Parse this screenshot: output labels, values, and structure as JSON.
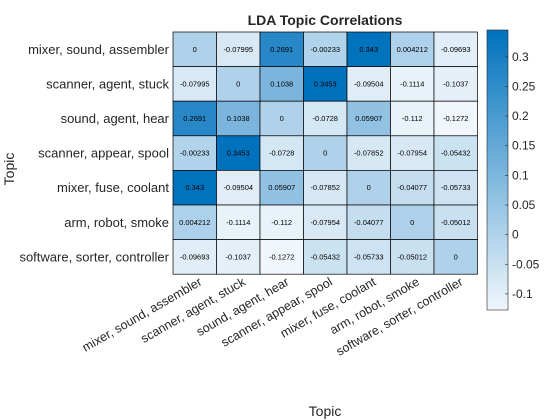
{
  "chart_data": {
    "type": "heatmap",
    "title": "LDA Topic Correlations",
    "xlabel": "Topic",
    "ylabel": "Topic",
    "categories": [
      "mixer, sound, assembler",
      "scanner, agent, stuck",
      "sound, agent, hear",
      "scanner, appear, spool",
      "mixer, fuse, coolant",
      "arm, robot, smoke",
      "software, sorter, controller"
    ],
    "values": [
      [
        0,
        -0.07995,
        0.2691,
        -0.00233,
        0.343,
        0.004212,
        -0.09693
      ],
      [
        -0.07995,
        0,
        0.1038,
        0.3453,
        -0.09504,
        -0.1114,
        -0.1037
      ],
      [
        0.2691,
        0.1038,
        0,
        -0.0728,
        0.05907,
        -0.112,
        -0.1272
      ],
      [
        -0.00233,
        0.3453,
        -0.0728,
        0,
        -0.07852,
        -0.07954,
        -0.05432
      ],
      [
        0.343,
        -0.09504,
        0.05907,
        -0.07852,
        0,
        -0.04077,
        -0.05733
      ],
      [
        0.004212,
        -0.1114,
        -0.112,
        -0.07954,
        -0.04077,
        0,
        -0.05012
      ],
      [
        -0.09693,
        -0.1037,
        -0.1272,
        -0.05432,
        -0.05733,
        -0.05012,
        0
      ]
    ],
    "cell_labels": [
      [
        "0",
        "-0.07995",
        "0.2691",
        "-0.00233",
        "0.343",
        "0.004212",
        "-0.09693"
      ],
      [
        "-0.07995",
        "0",
        "0.1038",
        "0.3453",
        "-0.09504",
        "-0.1114",
        "-0.1037"
      ],
      [
        "0.2691",
        "0.1038",
        "0",
        "-0.0728",
        "0.05907",
        "-0.112",
        "-0.1272"
      ],
      [
        "-0.00233",
        "0.3453",
        "-0.0728",
        "0",
        "-0.07852",
        "-0.07954",
        "-0.05432"
      ],
      [
        "0.343",
        "-0.09504",
        "0.05907",
        "-0.07852",
        "0",
        "-0.04077",
        "-0.05733"
      ],
      [
        "0.004212",
        "-0.1114",
        "-0.112",
        "-0.07954",
        "-0.04077",
        "0",
        "-0.05012"
      ],
      [
        "-0.09693",
        "-0.1037",
        "-0.1272",
        "-0.05432",
        "-0.05733",
        "-0.05012",
        "0"
      ]
    ],
    "colorbar": {
      "range": [
        -0.1272,
        0.3453
      ],
      "ticks": [
        -0.1,
        -0.05,
        0,
        0.05,
        0.1,
        0.15,
        0.2,
        0.25,
        0.3
      ],
      "tick_labels": [
        "-0.1",
        "-0.05",
        "0",
        "0.05",
        "0.1",
        "0.15",
        "0.2",
        "0.25",
        "0.3"
      ],
      "color_low": "#f0f6fb",
      "color_high": "#0072bd",
      "placement": "right"
    },
    "grid": true
  }
}
